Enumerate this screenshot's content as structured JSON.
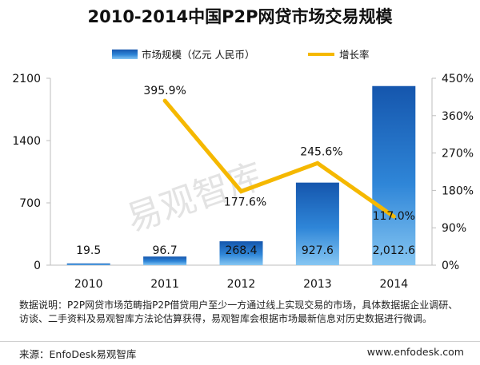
{
  "chart_data": {
    "type": "bar",
    "title": "2010-2014中国P2P网贷市场交易规模",
    "categories": [
      "2010",
      "2011",
      "2012",
      "2013",
      "2014"
    ],
    "series": [
      {
        "name": "市场规模（亿元 人民币）",
        "kind": "bar",
        "axis": "left",
        "values": [
          19.5,
          96.7,
          268.4,
          927.6,
          2012.6
        ],
        "labels": [
          "19.5",
          "96.7",
          "268.4",
          "927.6",
          "2,012.6"
        ]
      },
      {
        "name": "增长率",
        "kind": "line",
        "axis": "right",
        "x": [
          "2011",
          "2012",
          "2013",
          "2014"
        ],
        "values": [
          395.9,
          177.6,
          245.6,
          117.0
        ],
        "labels": [
          "395.9%",
          "177.6%",
          "245.6%",
          "117.0%"
        ]
      }
    ],
    "y_left": {
      "range": [
        0,
        2100
      ],
      "ticks": [
        "0",
        "700",
        "1400",
        "2100"
      ]
    },
    "y_right": {
      "range": [
        0,
        450
      ],
      "ticks": [
        "0%",
        "90%",
        "180%",
        "270%",
        "360%",
        "450%"
      ]
    },
    "legend_position": "top",
    "grid": false,
    "colors": {
      "bar": "#1a6fc2",
      "line": "#f5b800"
    },
    "watermark": "易观智库"
  },
  "note": "数据说明：P2P网贷市场范畴指P2P借贷用户至少一方通过线上实现交易的市场，具体数据据企业调研、访谈、二手资料及易观智库方法论估算获得，易观智库会根据市场最新信息对历史数据进行微调。",
  "footer": {
    "source": "来源：EnfoDesk易观智库",
    "url": "www.enfodesk.com"
  }
}
